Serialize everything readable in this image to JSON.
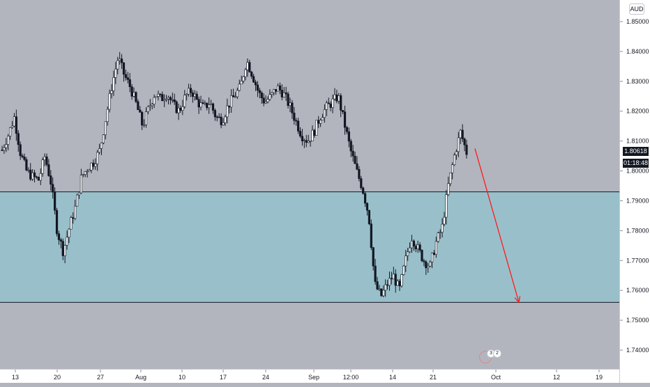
{
  "currency": "AUD",
  "current_price_label": "1.80618",
  "countdown_label": "01:18:48",
  "event_marker": {
    "left_count": "3",
    "right_count": "2"
  },
  "colors": {
    "background": "#b2b5be",
    "zone_fill": "#99c0ca",
    "candle": "#131722",
    "arrow": "#ff1a1a",
    "axis_text": "#131722"
  },
  "chart_data": {
    "type": "candlestick",
    "instrument_quote_currency": "AUD",
    "y_range": [
      1.7337,
      1.8575
    ],
    "y_ticks": [
      "1.85000",
      "1.84000",
      "1.83000",
      "1.82000",
      "1.81000",
      "1.80000",
      "1.79000",
      "1.78000",
      "1.77000",
      "1.76000",
      "1.75000",
      "1.74000"
    ],
    "x_ticks": [
      "13",
      "20",
      "27",
      "Aug",
      "10",
      "17",
      "24",
      "Sep",
      "12:00",
      "14",
      "21",
      "Oct",
      "12",
      "19"
    ],
    "close_path": [
      [
        "13",
        1.807
      ],
      [
        "14",
        1.812
      ],
      [
        "15",
        1.818
      ],
      [
        "16",
        1.806
      ],
      [
        "17",
        1.8
      ],
      [
        "18",
        1.798
      ],
      [
        "19",
        1.797
      ],
      [
        "20",
        1.805
      ],
      [
        "21",
        1.796
      ],
      [
        "22",
        1.78
      ],
      [
        "23",
        1.773
      ],
      [
        "24",
        1.781
      ],
      [
        "25",
        1.788
      ],
      [
        "26",
        1.798
      ],
      [
        "27",
        1.801
      ],
      [
        "28",
        1.803
      ],
      [
        "29",
        1.807
      ],
      [
        "30",
        1.818
      ],
      [
        "31",
        1.829
      ],
      [
        "Aug",
        1.838
      ],
      [
        "2",
        1.832
      ],
      [
        "3",
        1.828
      ],
      [
        "4",
        1.822
      ],
      [
        "5",
        1.815
      ],
      [
        "6",
        1.821
      ],
      [
        "7",
        1.826
      ],
      [
        "8",
        1.824
      ],
      [
        "10",
        1.826
      ],
      [
        "11",
        1.822
      ],
      [
        "12",
        1.82
      ],
      [
        "13",
        1.825
      ],
      [
        "14",
        1.827
      ],
      [
        "15",
        1.823
      ],
      [
        "16",
        1.821
      ],
      [
        "17",
        1.823
      ],
      [
        "18",
        1.818
      ],
      [
        "19",
        1.817
      ],
      [
        "20",
        1.822
      ],
      [
        "21",
        1.825
      ],
      [
        "22",
        1.828
      ],
      [
        "23",
        1.837
      ],
      [
        "24",
        1.832
      ],
      [
        "25",
        1.826
      ],
      [
        "26",
        1.823
      ],
      [
        "27",
        1.825
      ],
      [
        "28",
        1.828
      ],
      [
        "29",
        1.826
      ],
      [
        "30",
        1.822
      ],
      [
        "31",
        1.817
      ],
      [
        "Sep",
        1.812
      ],
      [
        "2",
        1.81
      ],
      [
        "3",
        1.813
      ],
      [
        "4",
        1.818
      ],
      [
        "5",
        1.821
      ],
      [
        "6",
        1.823
      ],
      [
        "12:00",
        1.825
      ],
      [
        "8",
        1.816
      ],
      [
        "9",
        1.807
      ],
      [
        "10",
        1.8
      ],
      [
        "11",
        1.794
      ],
      [
        "12",
        1.785
      ],
      [
        "13",
        1.762
      ],
      [
        "14",
        1.758
      ],
      [
        "15",
        1.762
      ],
      [
        "16",
        1.765
      ],
      [
        "17",
        1.76
      ],
      [
        "18",
        1.77
      ],
      [
        "19",
        1.778
      ],
      [
        "20",
        1.774
      ],
      [
        "21",
        1.77
      ],
      [
        "22",
        1.768
      ],
      [
        "23",
        1.776
      ],
      [
        "24",
        1.781
      ],
      [
        "25",
        1.795
      ],
      [
        "26",
        1.805
      ],
      [
        "27",
        1.813
      ],
      [
        "28",
        1.8062
      ]
    ],
    "zone": {
      "upper": 1.793,
      "lower": 1.756
    },
    "projection": {
      "from": 1.8075,
      "to": 1.756
    }
  }
}
